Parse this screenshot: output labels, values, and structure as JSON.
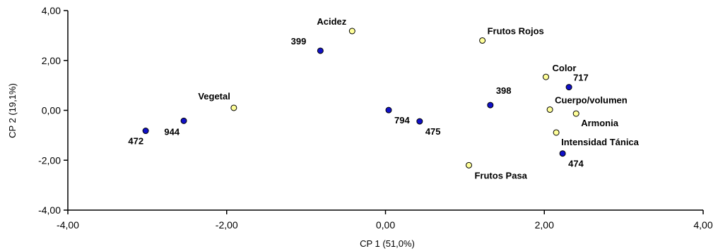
{
  "chart_data": {
    "type": "scatter",
    "xlabel": "CP 1 (51,0%)",
    "ylabel": "CP 2 (19,1%)",
    "xlim": [
      -4,
      4
    ],
    "ylim": [
      -4,
      4
    ],
    "xticks": [
      "-4,00",
      "-2,00",
      "0,00",
      "2,00",
      "4,00"
    ],
    "yticks": [
      "-4,00",
      "-2,00",
      "0,00",
      "2,00",
      "4,00"
    ],
    "grid": false,
    "series": [
      {
        "kind": "observations",
        "color": "#1010c8",
        "points": [
          {
            "label": "399",
            "x": -0.82,
            "y": 2.39
          },
          {
            "label": "472",
            "x": -3.02,
            "y": -0.82
          },
          {
            "label": "944",
            "x": -2.54,
            "y": -0.42
          },
          {
            "label": "794",
            "x": 0.04,
            "y": 0.01
          },
          {
            "label": "475",
            "x": 0.43,
            "y": -0.44
          },
          {
            "label": "398",
            "x": 1.32,
            "y": 0.21
          },
          {
            "label": "717",
            "x": 2.31,
            "y": 0.93
          },
          {
            "label": "474",
            "x": 2.23,
            "y": -1.73
          }
        ]
      },
      {
        "kind": "variables",
        "color": "#ffff99",
        "points": [
          {
            "label": "Acidez",
            "x": -0.42,
            "y": 3.18
          },
          {
            "label": "Frutos Rojos",
            "x": 1.22,
            "y": 2.8
          },
          {
            "label": "Vegetal",
            "x": -1.91,
            "y": 0.1
          },
          {
            "label": "Color",
            "x": 2.02,
            "y": 1.34
          },
          {
            "label": "Cuerpo/volumen",
            "x": 2.07,
            "y": 0.03
          },
          {
            "label": "Armonia",
            "x": 2.4,
            "y": -0.13
          },
          {
            "label": "Intensidad Tánica",
            "x": 2.15,
            "y": -0.89
          },
          {
            "label": "Frutos Pasa",
            "x": 1.05,
            "y": -2.2
          }
        ]
      }
    ]
  }
}
